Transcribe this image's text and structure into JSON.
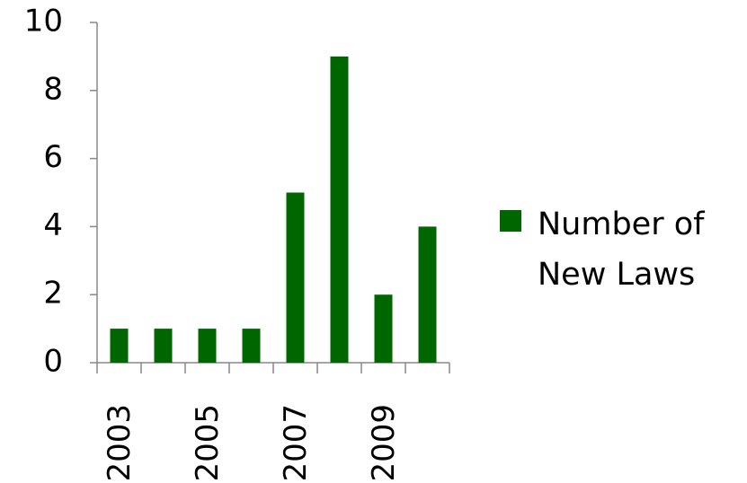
{
  "chart_data": {
    "type": "bar",
    "categories": [
      "2003",
      null,
      "2005",
      null,
      "2007",
      null,
      "2009",
      null
    ],
    "series": [
      {
        "name": "Number of New Laws",
        "color": "#006600",
        "values": [
          1,
          1,
          1,
          1,
          5,
          9,
          2,
          4
        ]
      }
    ],
    "ylim": [
      0,
      10
    ],
    "yticks": [
      0,
      2,
      4,
      6,
      8,
      10
    ],
    "grid": true,
    "legend": "right"
  }
}
